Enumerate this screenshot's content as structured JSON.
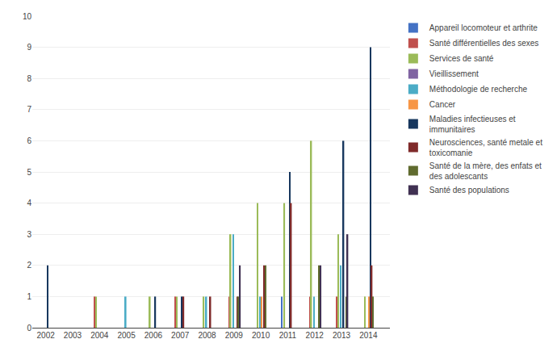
{
  "chart_data": {
    "type": "bar",
    "x": [
      2002,
      2003,
      2004,
      2005,
      2006,
      2007,
      2008,
      2009,
      2010,
      2011,
      2012,
      2013,
      2014
    ],
    "series": [
      {
        "name": "Appareil locomoteur et arthrite",
        "color": "#4472C4",
        "values": [
          0,
          0,
          0,
          0,
          0,
          0,
          0,
          0,
          0,
          1,
          0,
          0,
          0
        ]
      },
      {
        "name": "Santé différentielles des sexes",
        "color": "#C0504D",
        "values": [
          0,
          0,
          1,
          0,
          0,
          1,
          0,
          1,
          0,
          0,
          1,
          1,
          0
        ]
      },
      {
        "name": "Services de santé",
        "color": "#9BBB59",
        "values": [
          0,
          0,
          1,
          0,
          1,
          1,
          1,
          3,
          4,
          4,
          6,
          3,
          1
        ]
      },
      {
        "name": "Vieillissement",
        "color": "#8064A2",
        "values": [
          0,
          0,
          0,
          0,
          0,
          0,
          0,
          0,
          0,
          0,
          0,
          0,
          0
        ]
      },
      {
        "name": "Méthodologie de recherche",
        "color": "#4BACC6",
        "values": [
          0,
          0,
          0,
          1,
          0,
          0,
          1,
          3,
          1,
          0,
          1,
          2,
          0
        ]
      },
      {
        "name": "Cancer",
        "color": "#F79646",
        "values": [
          0,
          0,
          0,
          0,
          0,
          0,
          0,
          0,
          1,
          0,
          0,
          0,
          1
        ]
      },
      {
        "name": "Maladies infectieuses et\nimmunitaires",
        "color": "#17375E",
        "values": [
          2,
          0,
          0,
          0,
          1,
          1,
          0,
          0,
          0,
          5,
          0,
          6,
          9
        ]
      },
      {
        "name": "Neurosciences, santé metale et\ntoxicomanie",
        "color": "#7F2A2A",
        "values": [
          0,
          0,
          0,
          0,
          0,
          1,
          1,
          1,
          2,
          4,
          0,
          0,
          2
        ]
      },
      {
        "name": "Santé de la mère, des enfats et\ndes adolescants",
        "color": "#606B2F",
        "values": [
          0,
          0,
          0,
          0,
          0,
          0,
          0,
          1,
          2,
          0,
          2,
          1,
          1
        ]
      },
      {
        "name": "Santé des populations",
        "color": "#403152",
        "values": [
          0,
          0,
          0,
          0,
          0,
          0,
          0,
          2,
          0,
          0,
          2,
          3,
          0
        ]
      }
    ],
    "xlim": [
      2001.5,
      2014.8
    ],
    "xticks": [
      2002,
      2003,
      2004,
      2005,
      2006,
      2007,
      2008,
      2009,
      2010,
      2011,
      2012,
      2013,
      2014
    ],
    "ylim": [
      0,
      10
    ],
    "yticks": [
      0,
      1,
      2,
      3,
      4,
      5,
      6,
      7,
      8,
      9,
      10
    ],
    "grid": true,
    "legend": "right"
  }
}
